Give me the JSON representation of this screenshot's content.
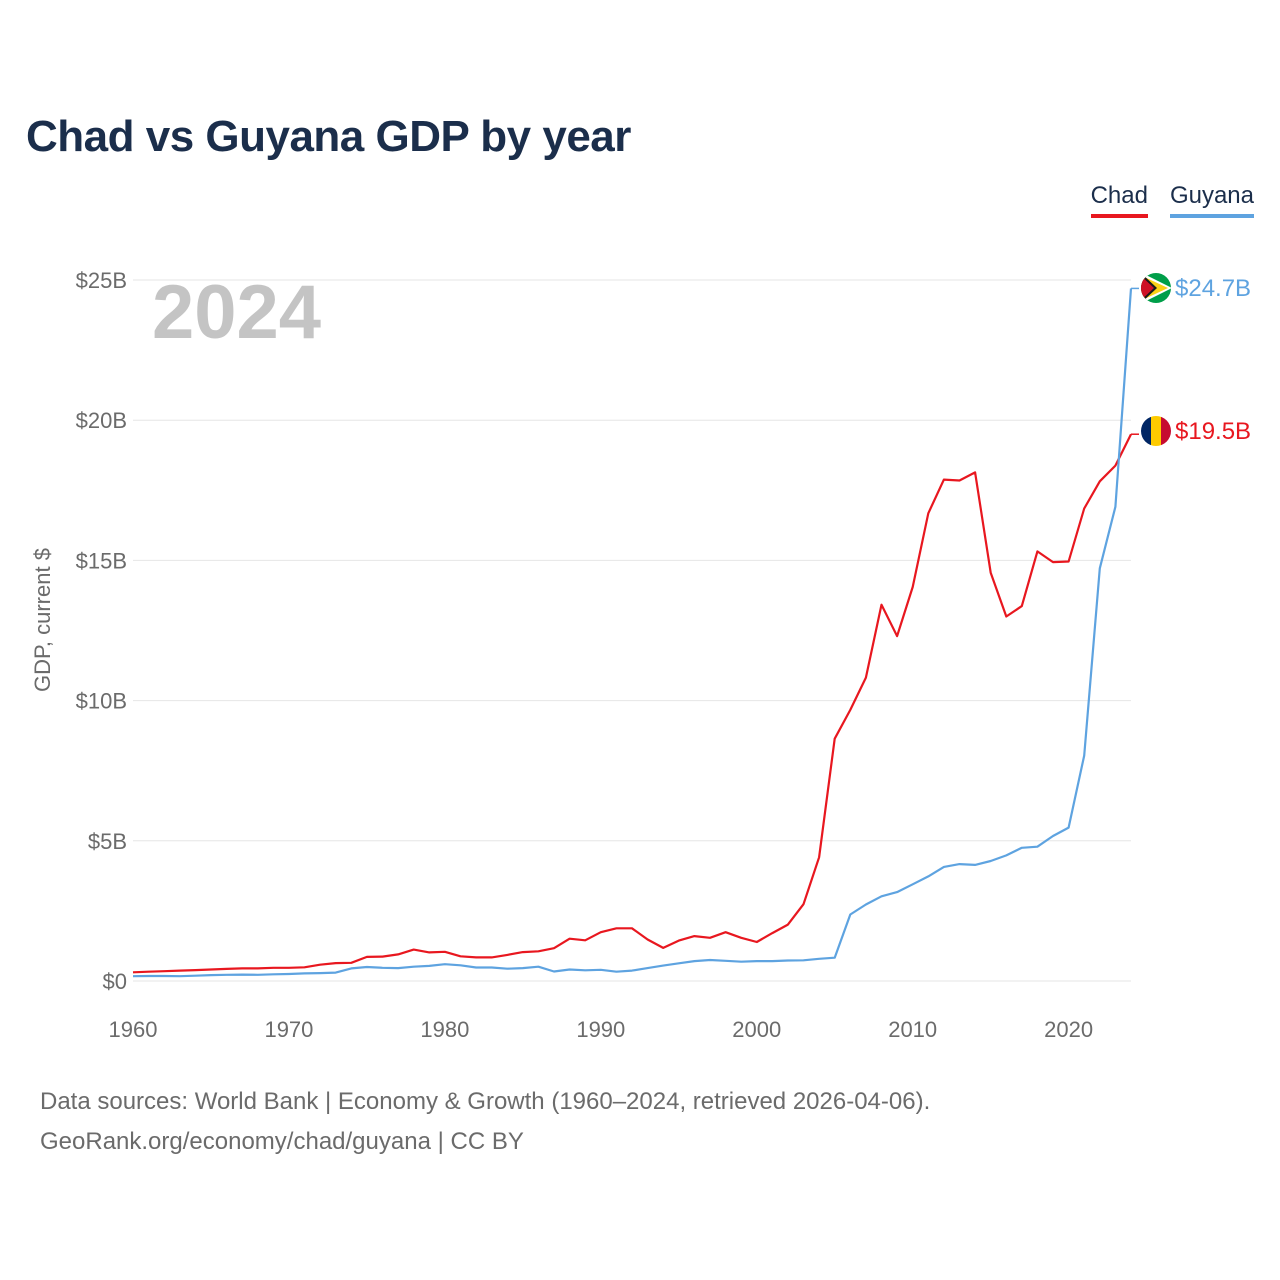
{
  "title": "Chad vs Guyana GDP by year",
  "legend": {
    "chad": "Chad",
    "guyana": "Guyana"
  },
  "colors": {
    "chad": "#e8171f",
    "guyana": "#5ea3e0",
    "title": "#1b2e4b",
    "axis_text": "#6b6b6b",
    "year_watermark": "#c4c4c4"
  },
  "footer": {
    "line1": "Data sources: World Bank | Economy & Growth (1960–2024, retrieved 2026-04-06).",
    "line2": "GeoRank.org/economy/chad/guyana | CC BY"
  },
  "chart_data": {
    "type": "line",
    "title": "Chad vs Guyana GDP by year",
    "xlabel": "",
    "ylabel": "GDP, current $",
    "year_label": "2024",
    "xlim": [
      1960,
      2024
    ],
    "ylim": [
      0,
      25
    ],
    "x_ticks": [
      1960,
      1970,
      1980,
      1990,
      2000,
      2010,
      2020
    ],
    "y_ticks": [
      0,
      5,
      10,
      15,
      20,
      25
    ],
    "y_tick_labels": [
      "$0",
      "$5B",
      "$10B",
      "$15B",
      "$20B",
      "$25B"
    ],
    "grid": true,
    "legend_position": "top-right",
    "x": [
      1960,
      1961,
      1962,
      1963,
      1964,
      1965,
      1966,
      1967,
      1968,
      1969,
      1970,
      1971,
      1972,
      1973,
      1974,
      1975,
      1976,
      1977,
      1978,
      1979,
      1980,
      1981,
      1982,
      1983,
      1984,
      1985,
      1986,
      1987,
      1988,
      1989,
      1990,
      1991,
      1992,
      1993,
      1994,
      1995,
      1996,
      1997,
      1998,
      1999,
      2000,
      2001,
      2002,
      2003,
      2004,
      2005,
      2006,
      2007,
      2008,
      2009,
      2010,
      2011,
      2012,
      2013,
      2014,
      2015,
      2016,
      2017,
      2018,
      2019,
      2020,
      2021,
      2022,
      2023,
      2024
    ],
    "series": [
      {
        "name": "Chad",
        "end_label": "$19.5B",
        "values": [
          0.31,
          0.33,
          0.35,
          0.37,
          0.39,
          0.41,
          0.43,
          0.45,
          0.45,
          0.47,
          0.47,
          0.49,
          0.58,
          0.64,
          0.65,
          0.86,
          0.87,
          0.95,
          1.12,
          1.02,
          1.04,
          0.88,
          0.84,
          0.84,
          0.93,
          1.03,
          1.06,
          1.17,
          1.51,
          1.45,
          1.74,
          1.88,
          1.88,
          1.48,
          1.18,
          1.44,
          1.6,
          1.54,
          1.74,
          1.54,
          1.39,
          1.71,
          2.01,
          2.74,
          4.41,
          8.64,
          9.67,
          10.82,
          13.42,
          12.3,
          14.05,
          16.68,
          17.88,
          17.85,
          18.14,
          14.56,
          13.0,
          13.37,
          15.32,
          14.94,
          14.96,
          16.85,
          17.82,
          18.38,
          19.5
        ]
      },
      {
        "name": "Guyana",
        "end_label": "$24.7B",
        "values": [
          0.17,
          0.18,
          0.18,
          0.17,
          0.19,
          0.21,
          0.22,
          0.23,
          0.22,
          0.24,
          0.25,
          0.27,
          0.28,
          0.3,
          0.45,
          0.5,
          0.47,
          0.46,
          0.51,
          0.54,
          0.6,
          0.56,
          0.48,
          0.48,
          0.44,
          0.46,
          0.51,
          0.34,
          0.41,
          0.38,
          0.4,
          0.33,
          0.37,
          0.46,
          0.55,
          0.63,
          0.71,
          0.75,
          0.72,
          0.69,
          0.71,
          0.71,
          0.73,
          0.74,
          0.79,
          0.83,
          2.37,
          2.73,
          3.02,
          3.17,
          3.45,
          3.73,
          4.07,
          4.17,
          4.14,
          4.28,
          4.48,
          4.75,
          4.79,
          5.17,
          5.47,
          8.04,
          14.72,
          16.91,
          24.7
        ]
      }
    ]
  }
}
